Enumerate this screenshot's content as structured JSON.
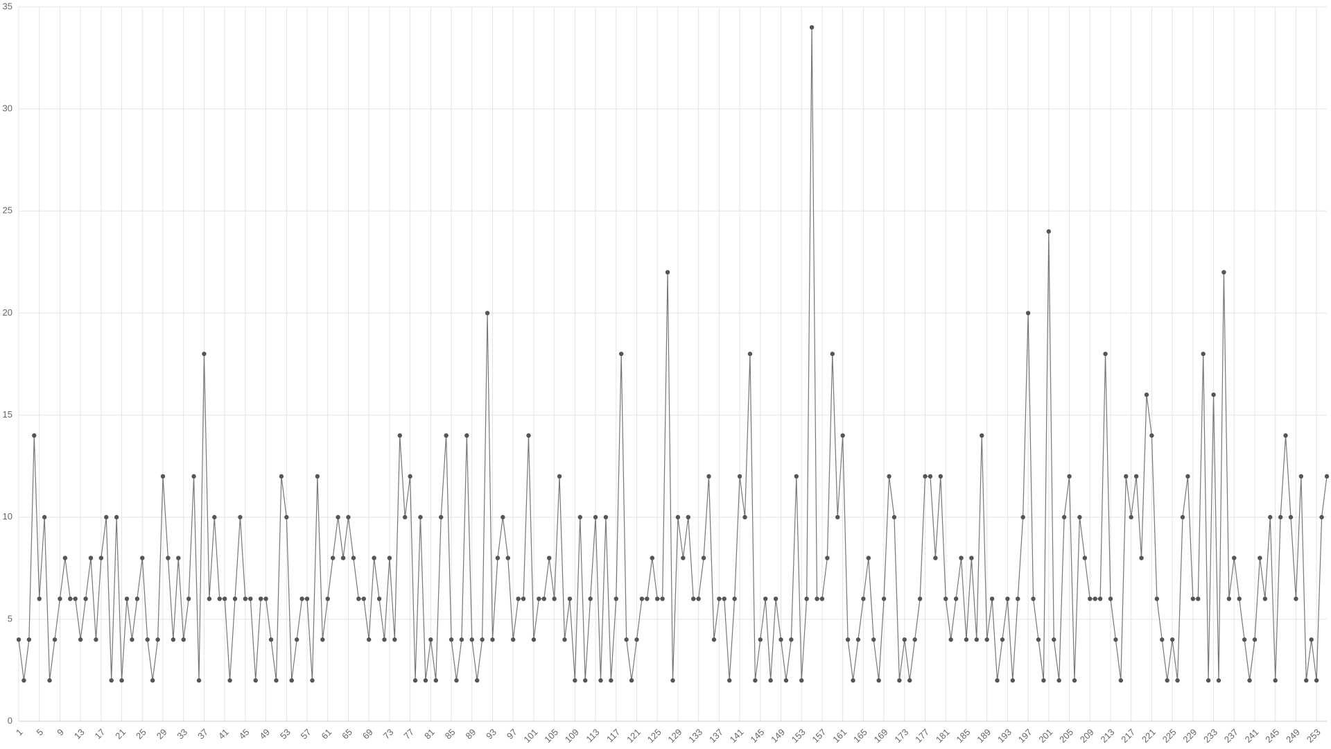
{
  "chart_data": {
    "type": "line",
    "categories": [
      1,
      null,
      null,
      null,
      5,
      null,
      null,
      null,
      9,
      null,
      null,
      null,
      13,
      null,
      null,
      null,
      17,
      null,
      null,
      null,
      21,
      null,
      null,
      null,
      25,
      null,
      null,
      null,
      29,
      null,
      null,
      null,
      33,
      null,
      null,
      null,
      37,
      null,
      null,
      null,
      41,
      null,
      null,
      null,
      45,
      null,
      null,
      null,
      49,
      null,
      null,
      null,
      53,
      null,
      null,
      null,
      57,
      null,
      null,
      null,
      61,
      null,
      null,
      null,
      65,
      null,
      null,
      null,
      69,
      null,
      null,
      null,
      73,
      null,
      null,
      null,
      77,
      null,
      null,
      null,
      81,
      null,
      null,
      null,
      85,
      null,
      null,
      null,
      89,
      null,
      null,
      null,
      93,
      null,
      null,
      null,
      97,
      null,
      null,
      null,
      101,
      null,
      null,
      null,
      105,
      null,
      null,
      null,
      109,
      null,
      null,
      null,
      113,
      null,
      null,
      null,
      117,
      null,
      null,
      null,
      121,
      null,
      null,
      null,
      125,
      null,
      null,
      null,
      129,
      null,
      null,
      null,
      133,
      null,
      null,
      null,
      137,
      null,
      null,
      null,
      141,
      null,
      null,
      null,
      145,
      null,
      null,
      null,
      149,
      null,
      null,
      null,
      153,
      null,
      null,
      null,
      157,
      null,
      null,
      null,
      161,
      null,
      null,
      null,
      165,
      null,
      null,
      null,
      169,
      null,
      null,
      null,
      173,
      null,
      null,
      null,
      177,
      null,
      null,
      null,
      181,
      null,
      null,
      null,
      185,
      null,
      null,
      null,
      189,
      null,
      null,
      null,
      193,
      null,
      null,
      null,
      197,
      null,
      null,
      null,
      201,
      null,
      null,
      null,
      205,
      null,
      null,
      null,
      209,
      null,
      null,
      null,
      213,
      null,
      null,
      null,
      217,
      null,
      null,
      null,
      221,
      null,
      null,
      null,
      225,
      null,
      null,
      null,
      229,
      null,
      null,
      null,
      233,
      null,
      null,
      null,
      237,
      null,
      null,
      null,
      241,
      null,
      null,
      null,
      245,
      null,
      null,
      null,
      249,
      null,
      null,
      null,
      253,
      null,
      null
    ],
    "values": [
      4,
      2,
      4,
      14,
      6,
      10,
      2,
      4,
      6,
      8,
      6,
      6,
      4,
      6,
      8,
      4,
      8,
      10,
      2,
      10,
      2,
      6,
      4,
      6,
      8,
      4,
      2,
      4,
      12,
      8,
      4,
      8,
      4,
      6,
      12,
      2,
      18,
      6,
      10,
      6,
      6,
      2,
      6,
      10,
      6,
      6,
      2,
      6,
      6,
      4,
      2,
      12,
      10,
      2,
      4,
      6,
      6,
      2,
      12,
      4,
      6,
      8,
      10,
      8,
      10,
      8,
      6,
      6,
      4,
      8,
      6,
      4,
      8,
      4,
      14,
      10,
      12,
      2,
      10,
      2,
      4,
      2,
      10,
      14,
      4,
      2,
      4,
      14,
      4,
      2,
      4,
      20,
      4,
      8,
      10,
      8,
      4,
      6,
      6,
      14,
      4,
      6,
      6,
      8,
      6,
      12,
      4,
      6,
      2,
      10,
      2,
      6,
      10,
      2,
      10,
      2,
      6,
      18,
      4,
      2,
      4,
      6,
      6,
      8,
      6,
      6,
      22,
      2,
      10,
      8,
      10,
      6,
      6,
      8,
      12,
      4,
      6,
      6,
      2,
      6,
      12,
      10,
      18,
      2,
      4,
      6,
      2,
      6,
      4,
      2,
      4,
      12,
      2,
      6,
      34,
      6,
      6,
      8,
      18,
      10,
      14,
      4,
      2,
      4,
      6,
      8,
      4,
      2,
      6,
      12,
      10,
      2,
      4,
      2,
      4,
      6,
      12,
      12,
      8,
      12,
      6,
      4,
      6,
      8,
      4,
      8,
      4,
      14,
      4,
      6,
      2,
      4,
      6,
      2,
      6,
      10,
      20,
      6,
      4,
      2,
      24,
      4,
      2,
      10,
      12,
      2,
      10,
      8,
      6,
      6,
      6,
      18,
      6,
      4,
      2,
      12,
      10,
      12,
      8,
      16,
      14,
      6,
      4,
      2,
      4,
      2,
      10,
      12,
      6,
      6,
      18,
      2,
      16,
      2,
      22,
      6,
      8,
      6,
      4,
      2,
      4,
      8,
      6,
      10,
      2,
      10,
      14,
      10,
      6,
      12,
      2,
      4,
      2,
      10,
      12
    ],
    "color": "#777777",
    "marker_color": "#555555",
    "ylim": [
      0,
      35
    ],
    "yticks": [
      0,
      5,
      10,
      15,
      20,
      25,
      30,
      35
    ],
    "grid": true
  }
}
